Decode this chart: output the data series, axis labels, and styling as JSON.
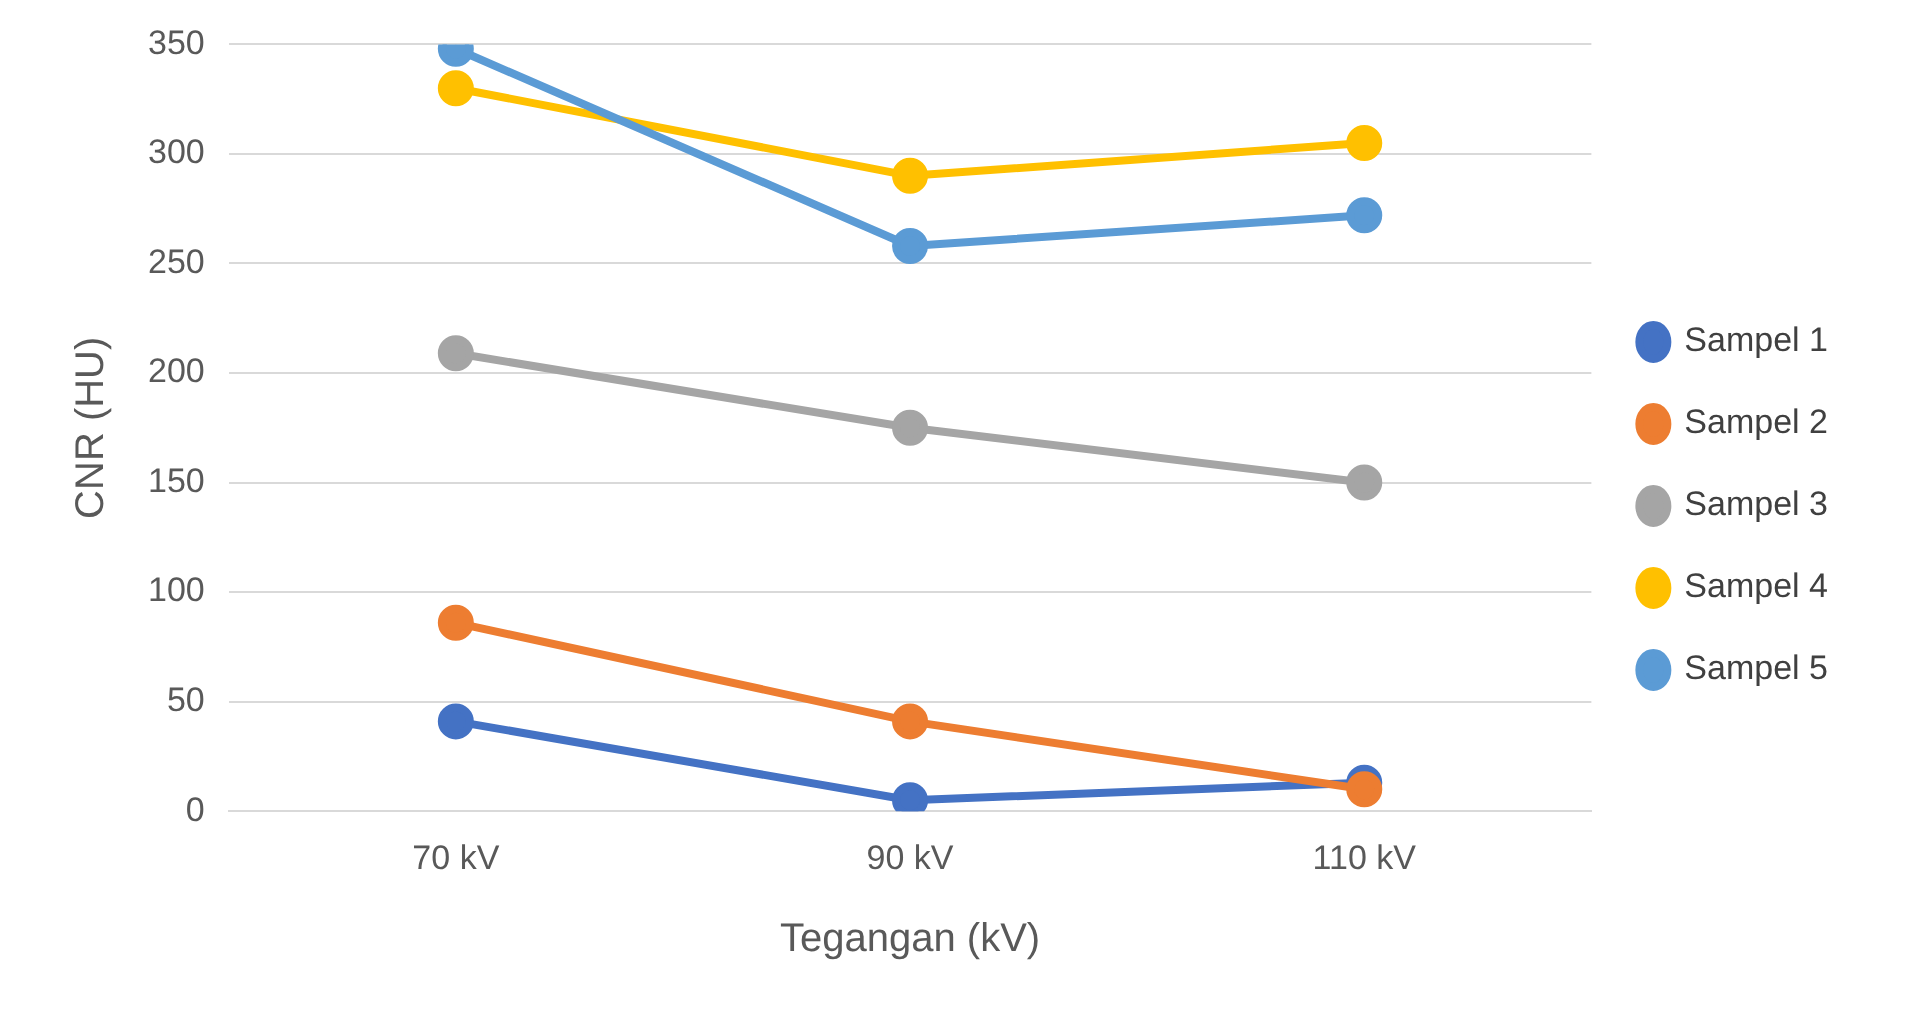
{
  "chart_data": {
    "type": "line",
    "xlabel": "Tegangan (kV)",
    "ylabel": "CNR (HU)",
    "categories": [
      "70 kV",
      "90 kV",
      "110 kV"
    ],
    "series": [
      {
        "name": "Sampel 1",
        "color": "#4472c4",
        "values": [
          41,
          5,
          13
        ]
      },
      {
        "name": "Sampel 2",
        "color": "#ed7d31",
        "values": [
          86,
          41,
          10
        ]
      },
      {
        "name": "Sampel 3",
        "color": "#a5a5a5",
        "values": [
          209,
          175,
          150
        ]
      },
      {
        "name": "Sampel 4",
        "color": "#ffc000",
        "values": [
          330,
          290,
          305
        ]
      },
      {
        "name": "Sampel 5",
        "color": "#5b9bd5",
        "values": [
          348,
          258,
          272
        ]
      }
    ],
    "ylim": [
      0,
      350
    ],
    "yticks": [
      0,
      50,
      100,
      150,
      200,
      250,
      300,
      350
    ],
    "grid": "y",
    "legend": "right",
    "marker": "circle",
    "line_style": "solid"
  }
}
